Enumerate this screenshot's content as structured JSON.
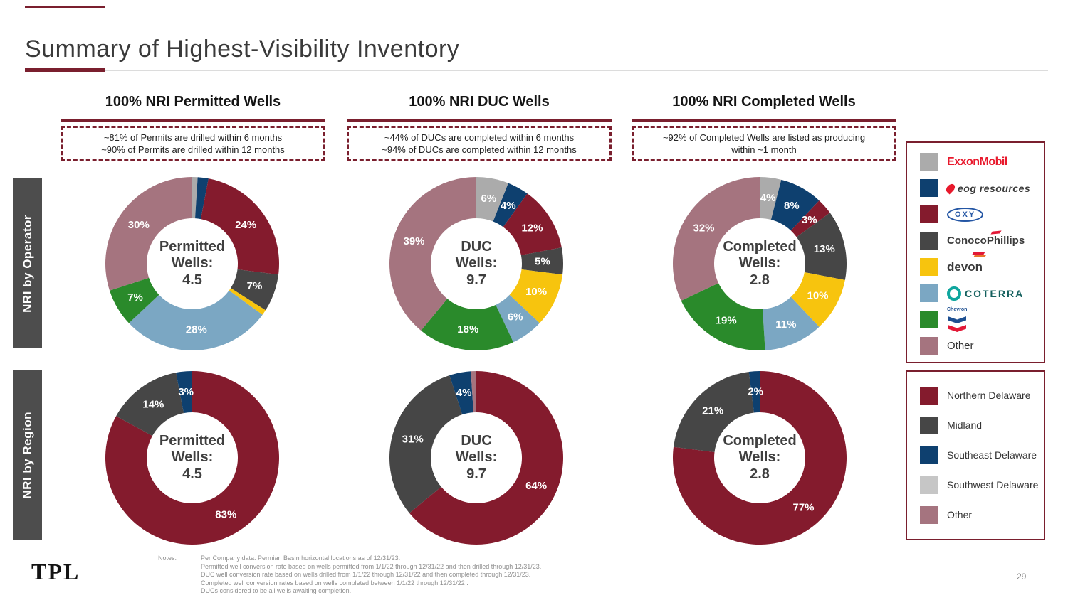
{
  "title": "Summary of Highest-Visibility Inventory",
  "palette": {
    "gray": "#ABABAB",
    "navy": "#0E406F",
    "maroon": "#841B2D",
    "darkgray": "#464646",
    "yellow": "#F7C40E",
    "lightblue": "#7BA7C3",
    "green": "#2A8A2B",
    "mauve": "#A5747F",
    "lightgray": "#C6C6C6",
    "accent": "#7A1F2E",
    "exxon_red": "#E8192C",
    "oxy_blue": "#2456A4",
    "coterra_teal": "#0FA69E",
    "chevron_blue": "#1D4F91",
    "chevron_red": "#E21836",
    "devon_orange": "#E8742B"
  },
  "columns": [
    {
      "header": "100% NRI Permitted Wells",
      "box_lines": [
        "~81% of Permits are drilled within 6 months",
        "~90% of Permits are drilled within 12 months"
      ]
    },
    {
      "header": "100% NRI DUC Wells",
      "box_lines": [
        "~44% of DUCs are completed within 6 months",
        "~94% of DUCs are completed within 12 months"
      ]
    },
    {
      "header": "100% NRI Completed Wells",
      "box_lines": [
        "~92% of Completed Wells are listed as producing",
        "within ~1 month"
      ]
    }
  ],
  "rows": [
    {
      "label": "NRI by Operator"
    },
    {
      "label": "NRI by Region"
    }
  ],
  "chart_data": [
    {
      "type": "pie",
      "id": "operator-permitted",
      "row": "NRI by Operator",
      "column": "100% NRI Permitted Wells",
      "center_lines": [
        "Permitted",
        "Wells:"
      ],
      "center_value": "4.5",
      "segments": [
        {
          "name": "ExxonMobil",
          "pct": 1,
          "color": "gray",
          "label": ""
        },
        {
          "name": "EOG Resources",
          "pct": 2,
          "color": "navy",
          "label": ""
        },
        {
          "name": "Oxy",
          "pct": 24,
          "color": "maroon",
          "label": "24%"
        },
        {
          "name": "ConocoPhillips",
          "pct": 7,
          "color": "darkgray",
          "label": "7%"
        },
        {
          "name": "Devon",
          "pct": 1,
          "color": "yellow",
          "label": ""
        },
        {
          "name": "Coterra",
          "pct": 28,
          "color": "lightblue",
          "label": "28%"
        },
        {
          "name": "Chevron",
          "pct": 7,
          "color": "green",
          "label": "7%"
        },
        {
          "name": "Other",
          "pct": 30,
          "color": "mauve",
          "label": "30%"
        }
      ]
    },
    {
      "type": "pie",
      "id": "operator-duc",
      "row": "NRI by Operator",
      "column": "100% NRI DUC Wells",
      "center_lines": [
        "DUC",
        "Wells:"
      ],
      "center_value": "9.7",
      "segments": [
        {
          "name": "ExxonMobil",
          "pct": 6,
          "color": "gray",
          "label": "6%"
        },
        {
          "name": "EOG Resources",
          "pct": 4,
          "color": "navy",
          "label": "4%"
        },
        {
          "name": "Oxy",
          "pct": 12,
          "color": "maroon",
          "label": "12%"
        },
        {
          "name": "ConocoPhillips",
          "pct": 5,
          "color": "darkgray",
          "label": "5%"
        },
        {
          "name": "Devon",
          "pct": 10,
          "color": "yellow",
          "label": "10%"
        },
        {
          "name": "Coterra",
          "pct": 6,
          "color": "lightblue",
          "label": "6%"
        },
        {
          "name": "Chevron",
          "pct": 18,
          "color": "green",
          "label": "18%"
        },
        {
          "name": "Other",
          "pct": 39,
          "color": "mauve",
          "label": "39%"
        }
      ]
    },
    {
      "type": "pie",
      "id": "operator-completed",
      "row": "NRI by Operator",
      "column": "100% NRI Completed Wells",
      "center_lines": [
        "Completed",
        "Wells:"
      ],
      "center_value": "2.8",
      "segments": [
        {
          "name": "ExxonMobil",
          "pct": 4,
          "color": "gray",
          "label": "4%"
        },
        {
          "name": "EOG Resources",
          "pct": 8,
          "color": "navy",
          "label": "8%"
        },
        {
          "name": "Oxy",
          "pct": 3,
          "color": "maroon",
          "label": "3%"
        },
        {
          "name": "ConocoPhillips",
          "pct": 13,
          "color": "darkgray",
          "label": "13%"
        },
        {
          "name": "Devon",
          "pct": 10,
          "color": "yellow",
          "label": "10%"
        },
        {
          "name": "Coterra",
          "pct": 11,
          "color": "lightblue",
          "label": "11%"
        },
        {
          "name": "Chevron",
          "pct": 19,
          "color": "green",
          "label": "19%"
        },
        {
          "name": "Other",
          "pct": 32,
          "color": "mauve",
          "label": "32%"
        }
      ]
    },
    {
      "type": "pie",
      "id": "region-permitted",
      "row": "NRI by Region",
      "column": "100% NRI Permitted Wells",
      "center_lines": [
        "Permitted",
        "Wells:"
      ],
      "center_value": "4.5",
      "segments": [
        {
          "name": "Northern Delaware",
          "pct": 83,
          "color": "maroon",
          "label": "83%"
        },
        {
          "name": "Midland",
          "pct": 14,
          "color": "darkgray",
          "label": "14%"
        },
        {
          "name": "Southeast Delaware",
          "pct": 3,
          "color": "navy",
          "label": "3%"
        }
      ]
    },
    {
      "type": "pie",
      "id": "region-duc",
      "row": "NRI by Region",
      "column": "100% NRI DUC Wells",
      "center_lines": [
        "DUC",
        "Wells:"
      ],
      "center_value": "9.7",
      "segments": [
        {
          "name": "Northern Delaware",
          "pct": 64,
          "color": "maroon",
          "label": "64%"
        },
        {
          "name": "Midland",
          "pct": 31,
          "color": "darkgray",
          "label": "31%"
        },
        {
          "name": "Southeast Delaware",
          "pct": 4,
          "color": "navy",
          "label": "4%"
        },
        {
          "name": "Other",
          "pct": 1,
          "color": "mauve",
          "label": ""
        }
      ]
    },
    {
      "type": "pie",
      "id": "region-completed",
      "row": "NRI by Region",
      "column": "100% NRI Completed Wells",
      "center_lines": [
        "Completed",
        "Wells:"
      ],
      "center_value": "2.8",
      "segments": [
        {
          "name": "Northern Delaware",
          "pct": 77,
          "color": "maroon",
          "label": "77%"
        },
        {
          "name": "Midland",
          "pct": 21,
          "color": "darkgray",
          "label": "21%"
        },
        {
          "name": "Southeast Delaware",
          "pct": 2,
          "color": "navy",
          "label": "2%"
        }
      ]
    }
  ],
  "legends": {
    "operator": {
      "items": [
        {
          "label": "ExxonMobil",
          "color": "gray"
        },
        {
          "label": "eog resources",
          "color": "navy"
        },
        {
          "label": "OXY",
          "color": "maroon"
        },
        {
          "label": "ConocoPhillips",
          "color": "darkgray"
        },
        {
          "label": "devon",
          "color": "yellow"
        },
        {
          "label": "COTERRA",
          "color": "lightblue"
        },
        {
          "label": "Chevron",
          "color": "green"
        },
        {
          "label": "Other",
          "color": "mauve"
        }
      ]
    },
    "region": {
      "items": [
        {
          "label": "Northern Delaware",
          "color": "maroon"
        },
        {
          "label": "Midland",
          "color": "darkgray"
        },
        {
          "label": "Southeast Delaware",
          "color": "navy"
        },
        {
          "label": "Southwest Delaware",
          "color": "lightgray"
        },
        {
          "label": "Other",
          "color": "mauve"
        }
      ]
    }
  },
  "footer": {
    "logo_text": "TPL",
    "notes_label": "Notes:",
    "notes": [
      "Per Company data. Permian Basin horizontal locations as of 12/31/23.",
      "Permitted well conversion rate based on wells permitted from 1/1/22 through 12/31/22 and then drilled through 12/31/23.",
      "DUC well conversion rate based on wells drilled from 1/1/22 through 12/31/22 and then completed through 12/31/23.",
      "Completed well conversion rates based on wells completed between 1/1/22 through 12/31/22 .",
      "DUCs considered to be all wells awaiting completion."
    ],
    "page_number": "29"
  }
}
